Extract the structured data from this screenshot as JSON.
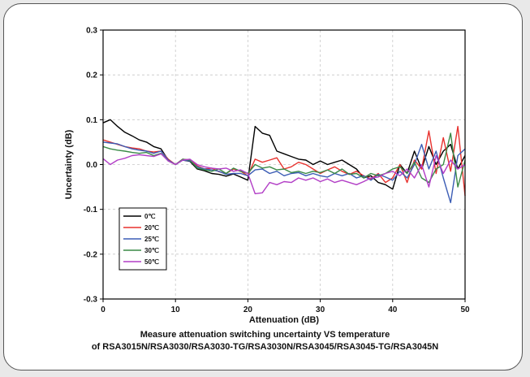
{
  "caption": {
    "line1": "Measure attenuation switching uncertainty VS temperature",
    "line2": "of RSA3015N/RSA3030/RSA3030-TG/RSA3030N/RSA3045/RSA3045-TG/RSA3045N"
  },
  "chart_data": {
    "type": "line",
    "xlabel": "Attenuation (dB)",
    "ylabel": "Uncertainty (dB)",
    "xlim": [
      0,
      50
    ],
    "ylim": [
      -0.3,
      0.3
    ],
    "xticks": [
      0,
      10,
      20,
      30,
      40,
      50
    ],
    "xtick_labels": [
      "0",
      "10",
      "20",
      "30",
      "40",
      "50"
    ],
    "yticks": [
      -0.3,
      -0.2,
      -0.1,
      0.0,
      0.1,
      0.2,
      0.3
    ],
    "ytick_labels": [
      "-0.3",
      "-0.2",
      "-0.1",
      "0.0",
      "0.1",
      "0.2",
      "0.3"
    ],
    "grid": true,
    "legend_position": "bottom-left",
    "x": [
      0,
      1,
      2,
      3,
      4,
      5,
      6,
      7,
      8,
      9,
      10,
      11,
      12,
      13,
      14,
      15,
      16,
      17,
      18,
      19,
      20,
      21,
      22,
      23,
      24,
      25,
      26,
      27,
      28,
      29,
      30,
      31,
      32,
      33,
      34,
      35,
      36,
      37,
      38,
      39,
      40,
      41,
      42,
      43,
      44,
      45,
      46,
      47,
      48,
      49,
      50
    ],
    "series": [
      {
        "name": "0℃",
        "color": "#000000",
        "values": [
          0.093,
          0.1,
          0.085,
          0.072,
          0.064,
          0.055,
          0.05,
          0.04,
          0.035,
          0.01,
          0.0,
          0.01,
          0.007,
          -0.01,
          -0.014,
          -0.02,
          -0.022,
          -0.026,
          -0.021,
          -0.028,
          -0.035,
          0.085,
          0.07,
          0.065,
          0.03,
          0.024,
          0.018,
          0.012,
          0.01,
          0.0,
          0.008,
          0.0,
          0.005,
          0.01,
          0.0,
          -0.01,
          -0.03,
          -0.025,
          -0.04,
          -0.045,
          -0.055,
          0.0,
          -0.02,
          0.03,
          -0.01,
          0.04,
          0.0,
          0.03,
          0.045,
          -0.01,
          0.02
        ]
      },
      {
        "name": "20℃",
        "color": "#e8322e",
        "values": [
          0.055,
          0.05,
          0.045,
          0.04,
          0.037,
          0.035,
          0.03,
          0.028,
          0.03,
          0.012,
          0.0,
          0.012,
          0.01,
          -0.003,
          -0.01,
          -0.008,
          -0.016,
          -0.02,
          -0.01,
          -0.015,
          -0.025,
          0.012,
          0.005,
          0.01,
          0.015,
          -0.01,
          -0.005,
          0.005,
          0.0,
          -0.01,
          -0.02,
          -0.012,
          -0.005,
          -0.015,
          -0.022,
          -0.015,
          -0.025,
          -0.032,
          -0.02,
          -0.04,
          -0.03,
          0.0,
          -0.04,
          0.01,
          -0.01,
          0.075,
          -0.02,
          0.06,
          -0.015,
          0.085,
          -0.07
        ]
      },
      {
        "name": "25℃",
        "color": "#3c5db5",
        "values": [
          0.05,
          0.048,
          0.046,
          0.04,
          0.035,
          0.032,
          0.03,
          0.025,
          0.03,
          0.01,
          0.0,
          0.01,
          0.008,
          -0.005,
          -0.01,
          -0.012,
          -0.015,
          -0.022,
          -0.02,
          -0.02,
          -0.025,
          -0.012,
          -0.01,
          -0.02,
          -0.015,
          -0.025,
          -0.02,
          -0.018,
          -0.025,
          -0.02,
          -0.025,
          -0.028,
          -0.02,
          -0.025,
          -0.02,
          -0.03,
          -0.025,
          -0.035,
          -0.022,
          -0.028,
          -0.035,
          -0.015,
          -0.03,
          0.0,
          0.045,
          -0.01,
          0.03,
          -0.03,
          -0.085,
          0.02,
          0.035
        ]
      },
      {
        "name": "30℃",
        "color": "#3a8a47",
        "values": [
          0.04,
          0.035,
          0.032,
          0.03,
          0.027,
          0.025,
          0.027,
          0.02,
          0.025,
          0.008,
          0.0,
          0.012,
          0.01,
          -0.008,
          -0.012,
          -0.015,
          -0.01,
          -0.02,
          -0.008,
          -0.015,
          -0.02,
          0.0,
          -0.008,
          -0.005,
          -0.012,
          -0.01,
          -0.018,
          -0.015,
          -0.02,
          -0.015,
          -0.018,
          -0.012,
          -0.02,
          -0.01,
          -0.022,
          -0.02,
          -0.03,
          -0.02,
          -0.025,
          -0.02,
          -0.01,
          -0.005,
          -0.02,
          0.005,
          -0.03,
          -0.04,
          -0.01,
          0.0,
          0.07,
          -0.05,
          0.01
        ]
      },
      {
        "name": "50℃",
        "color": "#b23ec6",
        "values": [
          0.013,
          0.0,
          0.01,
          0.014,
          0.02,
          0.022,
          0.02,
          0.018,
          0.024,
          0.008,
          0.0,
          0.01,
          0.012,
          0.0,
          -0.005,
          -0.008,
          -0.01,
          -0.008,
          -0.015,
          -0.012,
          -0.02,
          -0.065,
          -0.063,
          -0.04,
          -0.045,
          -0.038,
          -0.04,
          -0.03,
          -0.035,
          -0.03,
          -0.038,
          -0.032,
          -0.04,
          -0.035,
          -0.04,
          -0.045,
          -0.038,
          -0.03,
          -0.028,
          -0.02,
          -0.015,
          -0.025,
          -0.01,
          -0.03,
          0.0,
          -0.05,
          0.02,
          -0.02,
          0.01,
          -0.01,
          0.0
        ]
      }
    ]
  }
}
